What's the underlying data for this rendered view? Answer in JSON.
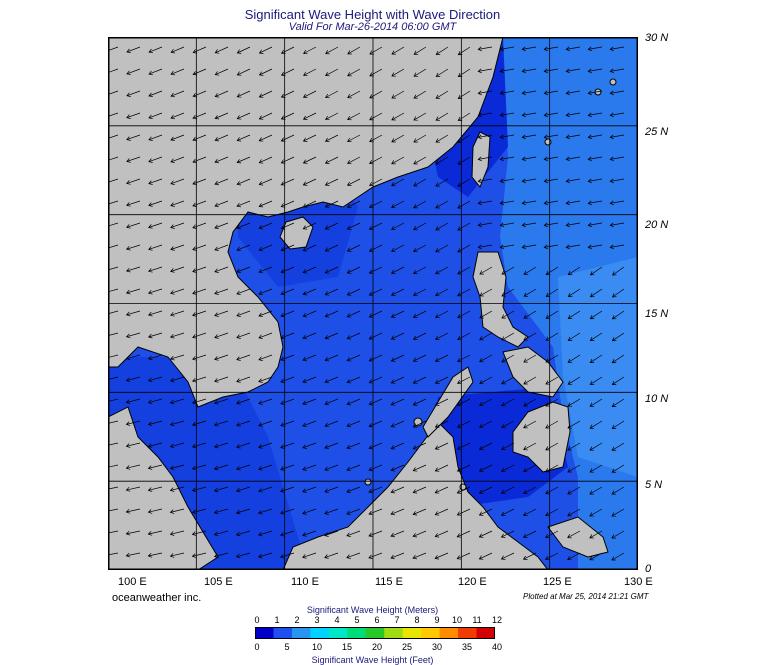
{
  "title": "Significant Wave Height with Wave Direction",
  "subtitle": "Valid For Mar-26-2014 06:00 GMT",
  "credit": "oceanweather inc.",
  "plotted": "Plotted at Mar 25, 2014 21:21 GMT",
  "lat_labels": [
    "30 N",
    "25 N",
    "20 N",
    "15 N",
    "10 N",
    "5 N",
    "0"
  ],
  "lon_labels": [
    "100 E",
    "105 E",
    "110 E",
    "115 E",
    "120 E",
    "125 E",
    "130 E"
  ],
  "map_extent": {
    "lon": [
      100,
      130
    ],
    "lat": [
      0,
      30
    ]
  },
  "colorbar": {
    "title_meters": "Significant Wave Height (Meters)",
    "title_feet": "Significant Wave Height (Feet)",
    "meter_ticks": [
      "0",
      "1",
      "2",
      "3",
      "4",
      "5",
      "6",
      "7",
      "8",
      "9",
      "10",
      "11",
      "12"
    ],
    "feet_ticks": [
      "0",
      "5",
      "10",
      "15",
      "20",
      "25",
      "30",
      "35",
      "40"
    ],
    "colors": [
      "#0000c8",
      "#1e50f0",
      "#2896f0",
      "#00d2ff",
      "#00e6c8",
      "#00dc78",
      "#28c828",
      "#a0dc14",
      "#e6e600",
      "#ffc800",
      "#ff8c00",
      "#f03c00",
      "#d20000"
    ]
  },
  "colors": {
    "land": "#c0c0c0",
    "coast": "#000000",
    "sea_dark": "#0a2ad8",
    "sea_mid": "#1e50e8",
    "sea_light": "#2a7aee",
    "text": "#1a1a7a"
  }
}
